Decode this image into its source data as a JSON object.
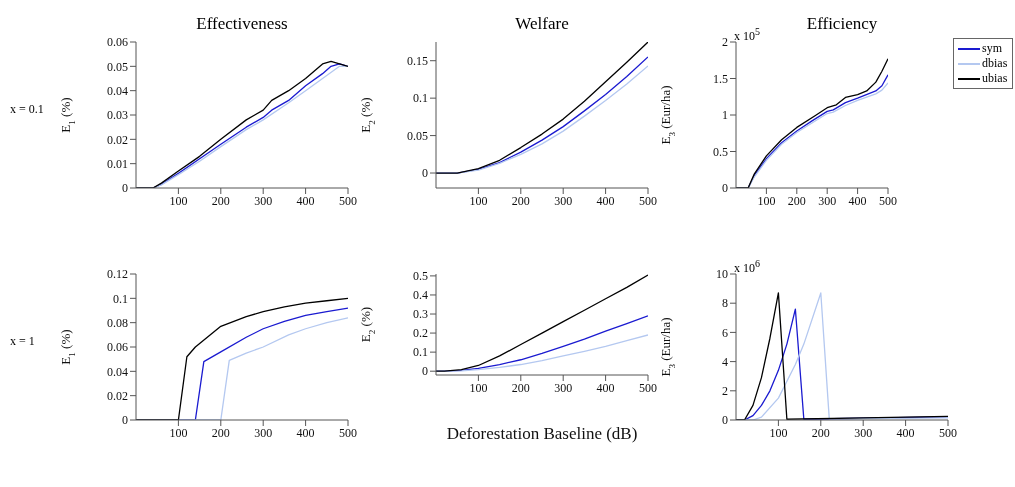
{
  "chart_data": [
    {
      "type": "line",
      "title": "Effectiveness",
      "ylabel": "E$_{1}$ (%)",
      "annotations": [
        "x = 0.1"
      ],
      "xlim": [
        0,
        500
      ],
      "xticks": [
        100,
        200,
        300,
        400,
        500
      ],
      "ylim": [
        0,
        0.06
      ],
      "yticks": [
        0,
        0.01,
        0.02,
        0.03,
        0.04,
        0.05,
        0.06
      ],
      "series": [
        {
          "color": "#1a1ad0",
          "x": [
            0,
            40,
            60,
            100,
            150,
            200,
            260,
            300,
            320,
            360,
            400,
            440,
            460,
            480,
            500
          ],
          "values": [
            0,
            0,
            0.0015,
            0.006,
            0.012,
            0.018,
            0.025,
            0.029,
            0.032,
            0.036,
            0.042,
            0.047,
            0.05,
            0.051,
            0.05
          ]
        },
        {
          "color": "#b4c8f0",
          "x": [
            0,
            40,
            60,
            100,
            150,
            200,
            260,
            300,
            360,
            400,
            440,
            480,
            500
          ],
          "values": [
            0,
            0,
            0.0013,
            0.0055,
            0.011,
            0.017,
            0.024,
            0.028,
            0.035,
            0.04,
            0.045,
            0.05,
            0.05
          ]
        },
        {
          "color": "#000000",
          "x": [
            0,
            40,
            60,
            100,
            150,
            200,
            260,
            280,
            300,
            320,
            360,
            400,
            440,
            460,
            480,
            500
          ],
          "values": [
            0,
            0,
            0.002,
            0.007,
            0.013,
            0.02,
            0.028,
            0.03,
            0.032,
            0.036,
            0.04,
            0.045,
            0.051,
            0.052,
            0.051,
            0.05
          ]
        }
      ]
    },
    {
      "type": "line",
      "title": "Welfare",
      "ylabel": "E$_{2}$ (%)",
      "xlim": [
        0,
        500
      ],
      "xticks": [
        100,
        200,
        300,
        400,
        500
      ],
      "ylim": [
        -0.02,
        0.175
      ],
      "yticks": [
        0,
        0.05,
        0.1,
        0.15
      ],
      "series": [
        {
          "color": "#1a1ad0",
          "x": [
            0,
            50,
            100,
            150,
            200,
            250,
            300,
            350,
            400,
            450,
            500
          ],
          "values": [
            0,
            0,
            0.005,
            0.014,
            0.028,
            0.044,
            0.062,
            0.083,
            0.105,
            0.129,
            0.155
          ]
        },
        {
          "color": "#b4c8f0",
          "x": [
            0,
            50,
            100,
            150,
            200,
            250,
            300,
            350,
            400,
            450,
            500
          ],
          "values": [
            0,
            0,
            0.004,
            0.013,
            0.025,
            0.039,
            0.056,
            0.076,
            0.097,
            0.119,
            0.143
          ]
        },
        {
          "color": "#000000",
          "x": [
            0,
            50,
            100,
            150,
            200,
            250,
            300,
            350,
            400,
            450,
            500
          ],
          "values": [
            0,
            0,
            0.006,
            0.017,
            0.034,
            0.052,
            0.072,
            0.096,
            0.122,
            0.148,
            0.175
          ]
        }
      ]
    },
    {
      "type": "line",
      "title": "Efficiency",
      "ylabel": "E$_{3}$ (Eur/ha)",
      "annotations": [
        "x 10$^{5}$"
      ],
      "legend": "right",
      "xlim": [
        0,
        500
      ],
      "xticks": [
        100,
        200,
        300,
        400,
        500
      ],
      "ylim": [
        0,
        2
      ],
      "yticks": [
        0,
        0.5,
        1,
        1.5,
        2
      ],
      "series": [
        {
          "name": "sym",
          "color": "#1a1ad0",
          "x": [
            0,
            40,
            60,
            100,
            150,
            200,
            250,
            300,
            320,
            360,
            400,
            460,
            480,
            500
          ],
          "values": [
            0,
            0,
            0.17,
            0.4,
            0.62,
            0.78,
            0.92,
            1.05,
            1.07,
            1.17,
            1.23,
            1.33,
            1.4,
            1.55
          ]
        },
        {
          "name": "dbias",
          "color": "#b4c8f0",
          "x": [
            0,
            40,
            60,
            100,
            150,
            200,
            250,
            300,
            320,
            360,
            400,
            460,
            480,
            500
          ],
          "values": [
            0,
            0,
            0.15,
            0.38,
            0.6,
            0.76,
            0.89,
            1.02,
            1.04,
            1.13,
            1.2,
            1.29,
            1.34,
            1.44
          ]
        },
        {
          "name": "ubias",
          "color": "#000000",
          "x": [
            0,
            40,
            60,
            100,
            150,
            200,
            260,
            300,
            330,
            360,
            400,
            430,
            460,
            480,
            500
          ],
          "values": [
            0,
            0,
            0.19,
            0.44,
            0.66,
            0.83,
            0.99,
            1.1,
            1.14,
            1.24,
            1.28,
            1.33,
            1.45,
            1.6,
            1.77
          ]
        }
      ]
    },
    {
      "type": "line",
      "ylabel": "E$_{1}$ (%)",
      "annotations": [
        "x = 1"
      ],
      "xlim": [
        0,
        500
      ],
      "xticks": [
        100,
        200,
        300,
        400,
        500
      ],
      "ylim": [
        0,
        0.12
      ],
      "yticks": [
        0,
        0.02,
        0.04,
        0.06,
        0.08,
        0.1,
        0.12
      ],
      "series": [
        {
          "color": "#1a1ad0",
          "x": [
            0,
            140,
            160,
            200,
            260,
            300,
            350,
            400,
            450,
            500
          ],
          "values": [
            0,
            0,
            0.048,
            0.056,
            0.068,
            0.075,
            0.081,
            0.086,
            0.089,
            0.092
          ]
        },
        {
          "color": "#b4c8f0",
          "x": [
            0,
            200,
            220,
            260,
            300,
            360,
            400,
            450,
            500
          ],
          "values": [
            0,
            0,
            0.049,
            0.055,
            0.06,
            0.07,
            0.075,
            0.08,
            0.084
          ]
        },
        {
          "color": "#000000",
          "x": [
            0,
            100,
            120,
            140,
            200,
            260,
            300,
            350,
            400,
            450,
            500
          ],
          "values": [
            0,
            0,
            0.052,
            0.06,
            0.077,
            0.085,
            0.089,
            0.093,
            0.096,
            0.098,
            0.1
          ]
        }
      ]
    },
    {
      "type": "line",
      "ylabel": "E$_{2}$ (%)",
      "xlabel": "Deforestation Baseline (dB)",
      "xlim": [
        0,
        500
      ],
      "xticks": [
        100,
        200,
        300,
        400,
        500
      ],
      "ylim": [
        -0.02,
        0.51
      ],
      "yticks": [
        0,
        0.1,
        0.2,
        0.3,
        0.4,
        0.5
      ],
      "series": [
        {
          "color": "#1a1ad0",
          "x": [
            0,
            20,
            60,
            100,
            150,
            200,
            250,
            300,
            350,
            400,
            450,
            500
          ],
          "values": [
            0,
            0,
            0.004,
            0.015,
            0.035,
            0.06,
            0.093,
            0.13,
            0.168,
            0.21,
            0.25,
            0.29
          ]
        },
        {
          "color": "#b4c8f0",
          "x": [
            0,
            20,
            60,
            100,
            150,
            200,
            250,
            300,
            350,
            400,
            450,
            500
          ],
          "values": [
            0,
            0,
            0.002,
            0.008,
            0.02,
            0.035,
            0.056,
            0.08,
            0.104,
            0.13,
            0.16,
            0.19
          ]
        },
        {
          "color": "#000000",
          "x": [
            0,
            20,
            60,
            100,
            150,
            200,
            250,
            300,
            350,
            400,
            450,
            500
          ],
          "values": [
            0,
            0,
            0.008,
            0.03,
            0.08,
            0.14,
            0.2,
            0.26,
            0.32,
            0.38,
            0.44,
            0.505
          ]
        }
      ]
    },
    {
      "type": "line",
      "ylabel": "E$_{3}$ (Eur/ha)",
      "annotations": [
        "x 10$^{6}$"
      ],
      "xlim": [
        0,
        500
      ],
      "xticks": [
        100,
        200,
        300,
        400,
        500
      ],
      "ylim": [
        0,
        10
      ],
      "yticks": [
        0,
        2,
        4,
        6,
        8,
        10
      ],
      "series": [
        {
          "color": "#1a1ad0",
          "x": [
            0,
            20,
            40,
            60,
            80,
            100,
            120,
            140,
            160,
            300,
            500
          ],
          "values": [
            0,
            0,
            0.3,
            1,
            2,
            3.4,
            5.2,
            7.6,
            0.05,
            0.12,
            0.22
          ]
        },
        {
          "color": "#b4c8f0",
          "x": [
            0,
            40,
            60,
            100,
            140,
            160,
            200,
            220,
            300,
            500
          ],
          "values": [
            0,
            0,
            0.2,
            1.5,
            3.8,
            5.2,
            8.7,
            0.08,
            0.1,
            0.15
          ]
        },
        {
          "color": "#000000",
          "x": [
            0,
            20,
            40,
            60,
            80,
            100,
            120,
            300,
            500
          ],
          "values": [
            0,
            0,
            1,
            2.9,
            5.6,
            8.7,
            0.05,
            0.15,
            0.25
          ]
        }
      ]
    }
  ]
}
